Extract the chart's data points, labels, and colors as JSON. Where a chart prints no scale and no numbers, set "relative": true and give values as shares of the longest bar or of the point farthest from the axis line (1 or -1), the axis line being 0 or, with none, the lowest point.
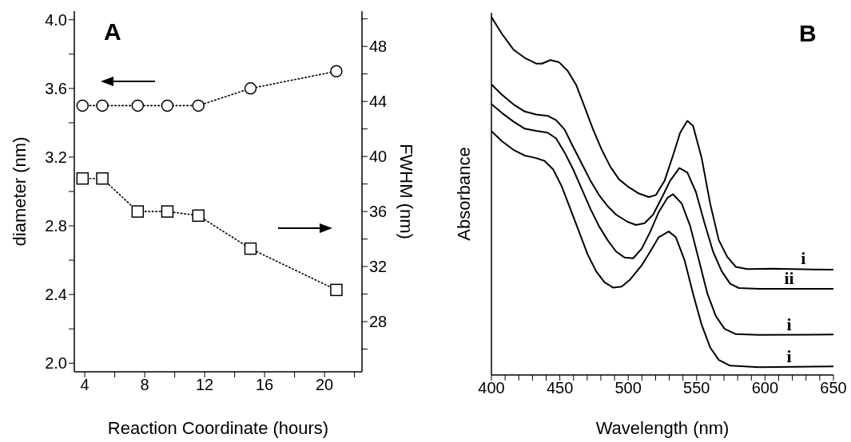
{
  "chart_data": [
    {
      "type": "line",
      "annotations": [
        "A"
      ],
      "xlabel": "Reaction Coordinate (hours)",
      "ylabel": "diameter (nm)",
      "y2label": "FWHM (nm)",
      "xlim": [
        3.3,
        22.5
      ],
      "xticks": [
        4,
        {
          "value": 6,
          "label": null
        },
        8,
        {
          "value": 10,
          "label": null
        },
        12,
        {
          "value": 14,
          "label": null
        },
        16,
        {
          "value": 18,
          "label": null
        },
        20,
        {
          "value": 22,
          "label": null
        }
      ],
      "ylim": [
        1.95,
        4.05
      ],
      "yticks": [
        {
          "value": 2,
          "label": "2.0"
        },
        {
          "value": 2.2,
          "label": null
        },
        {
          "value": 2.4,
          "label": "2.4"
        },
        {
          "value": 2.6,
          "label": null
        },
        {
          "value": 2.8,
          "label": "2.8"
        },
        {
          "value": 3,
          "label": null
        },
        {
          "value": 3.2,
          "label": "3.2"
        },
        {
          "value": 3.4,
          "label": null
        },
        {
          "value": 3.6,
          "label": "3.6"
        },
        {
          "value": 3.8,
          "label": null
        },
        {
          "value": 4,
          "label": "4.0"
        }
      ],
      "y2lim": [
        24.35,
        50.56
      ],
      "y2ticks": [
        {
          "value": 26,
          "label": null
        },
        28,
        {
          "value": 30,
          "label": null
        },
        32,
        {
          "value": 34,
          "label": null
        },
        36,
        {
          "value": 38,
          "label": null
        },
        40,
        {
          "value": 42,
          "label": null
        },
        44,
        {
          "value": 46,
          "label": null
        },
        48,
        {
          "value": 50,
          "label": null
        }
      ],
      "line_style": "dotted",
      "series": [
        {
          "color": "#000000",
          "marker": "circle",
          "x": [
            3.85,
            5.17,
            7.53,
            9.51,
            11.58,
            15.06,
            20.79
          ],
          "values": [
            3.5,
            3.5,
            3.5,
            3.5,
            3.5,
            3.6,
            3.7
          ]
        },
        {
          "color": "#000000",
          "marker": "square",
          "axis": "y2",
          "x": [
            3.85,
            5.17,
            7.53,
            9.51,
            11.58,
            15.06,
            20.79
          ],
          "values": [
            38.4,
            38.4,
            36.0,
            36.0,
            35.7,
            33.3,
            30.3
          ]
        }
      ]
    },
    {
      "type": "line",
      "relative": true,
      "annotations": [
        "B"
      ],
      "xlabel": "Wavelength (nm)",
      "ylabel": "Absorbance",
      "xlim": [
        400,
        650
      ],
      "xticks": [
        400,
        {
          "value": 410,
          "label": null
        },
        {
          "value": 420,
          "label": null
        },
        {
          "value": 430,
          "label": null
        },
        {
          "value": 440,
          "label": null
        },
        450,
        {
          "value": 460,
          "label": null
        },
        {
          "value": 470,
          "label": null
        },
        {
          "value": 480,
          "label": null
        },
        {
          "value": 490,
          "label": null
        },
        500,
        {
          "value": 510,
          "label": null
        },
        {
          "value": 520,
          "label": null
        },
        {
          "value": 530,
          "label": null
        },
        {
          "value": 540,
          "label": null
        },
        550,
        {
          "value": 560,
          "label": null
        },
        {
          "value": 570,
          "label": null
        },
        {
          "value": 580,
          "label": null
        },
        {
          "value": 590,
          "label": null
        },
        600,
        {
          "value": 610,
          "label": null
        },
        {
          "value": 620,
          "label": null
        },
        {
          "value": 630,
          "label": null
        },
        {
          "value": 640,
          "label": null
        },
        650
      ],
      "line_style": "solid",
      "marker": "none",
      "series": [
        {
          "name": "i",
          "color": "#000000",
          "x": [
            400,
            407.7,
            416.1,
            424.4,
            432.7,
            436.9,
            443.2,
            449.4,
            455.7,
            461.9,
            468.2,
            474.4,
            480.7,
            486.9,
            493.2,
            499.5,
            507.8,
            515.1,
            520.3,
            526.6,
            532.8,
            538.0,
            543.2,
            547.4,
            553.7,
            559.9,
            566.2,
            572.4,
            578.7,
            587.0,
            605.8,
            650
          ],
          "values": [
            1.0,
            0.953,
            0.909,
            0.886,
            0.87,
            0.87,
            0.88,
            0.874,
            0.85,
            0.811,
            0.748,
            0.685,
            0.629,
            0.582,
            0.547,
            0.527,
            0.507,
            0.497,
            0.503,
            0.543,
            0.614,
            0.677,
            0.71,
            0.696,
            0.606,
            0.479,
            0.377,
            0.33,
            0.302,
            0.296,
            0.297,
            0.294
          ]
        },
        {
          "name": "ii",
          "color": "#000000",
          "x": [
            400,
            407.7,
            416.1,
            424.4,
            432.7,
            441.1,
            447.3,
            453.6,
            459.8,
            466.1,
            472.4,
            478.6,
            484.9,
            491.1,
            499.5,
            505.7,
            512.0,
            518.2,
            524.5,
            530.7,
            537.4,
            543.2,
            549.5,
            555.8,
            562.0,
            568.3,
            574.5,
            580.8,
            595.4,
            650
          ],
          "values": [
            0.812,
            0.783,
            0.756,
            0.736,
            0.728,
            0.724,
            0.712,
            0.685,
            0.637,
            0.59,
            0.543,
            0.503,
            0.472,
            0.448,
            0.428,
            0.419,
            0.424,
            0.448,
            0.495,
            0.543,
            0.578,
            0.566,
            0.511,
            0.424,
            0.345,
            0.29,
            0.255,
            0.243,
            0.241,
            0.241
          ]
        },
        {
          "name": "i",
          "color": "#000000",
          "x": [
            400,
            407.7,
            416.1,
            424.4,
            432.7,
            441.1,
            447.3,
            453.6,
            459.8,
            466.1,
            472.4,
            478.6,
            484.9,
            491.1,
            497.4,
            503.6,
            509.9,
            516.2,
            522.4,
            528.7,
            532.8,
            539.1,
            545.3,
            551.6,
            557.9,
            564.1,
            570.4,
            578.7,
            595.4,
            650
          ],
          "values": [
            0.757,
            0.732,
            0.708,
            0.688,
            0.682,
            0.677,
            0.661,
            0.621,
            0.574,
            0.519,
            0.464,
            0.416,
            0.377,
            0.345,
            0.328,
            0.326,
            0.353,
            0.401,
            0.456,
            0.495,
            0.505,
            0.479,
            0.416,
            0.322,
            0.227,
            0.164,
            0.129,
            0.114,
            0.112,
            0.113
          ]
        },
        {
          "name": "i",
          "color": "#000000",
          "x": [
            400,
            407.7,
            416.1,
            424.4,
            432.7,
            438.9,
            445.2,
            451.4,
            457.7,
            464.0,
            470.2,
            476.5,
            482.7,
            489.0,
            495.2,
            501.5,
            509.8,
            516.1,
            522.3,
            529.6,
            534.8,
            541.1,
            547.4,
            553.7,
            559.9,
            566.2,
            574.5,
            595.4,
            650
          ],
          "values": [
            0.681,
            0.653,
            0.629,
            0.613,
            0.606,
            0.598,
            0.574,
            0.527,
            0.464,
            0.401,
            0.338,
            0.29,
            0.259,
            0.244,
            0.247,
            0.267,
            0.306,
            0.345,
            0.385,
            0.401,
            0.385,
            0.322,
            0.227,
            0.14,
            0.077,
            0.042,
            0.026,
            0.022,
            0.024
          ]
        }
      ]
    }
  ]
}
